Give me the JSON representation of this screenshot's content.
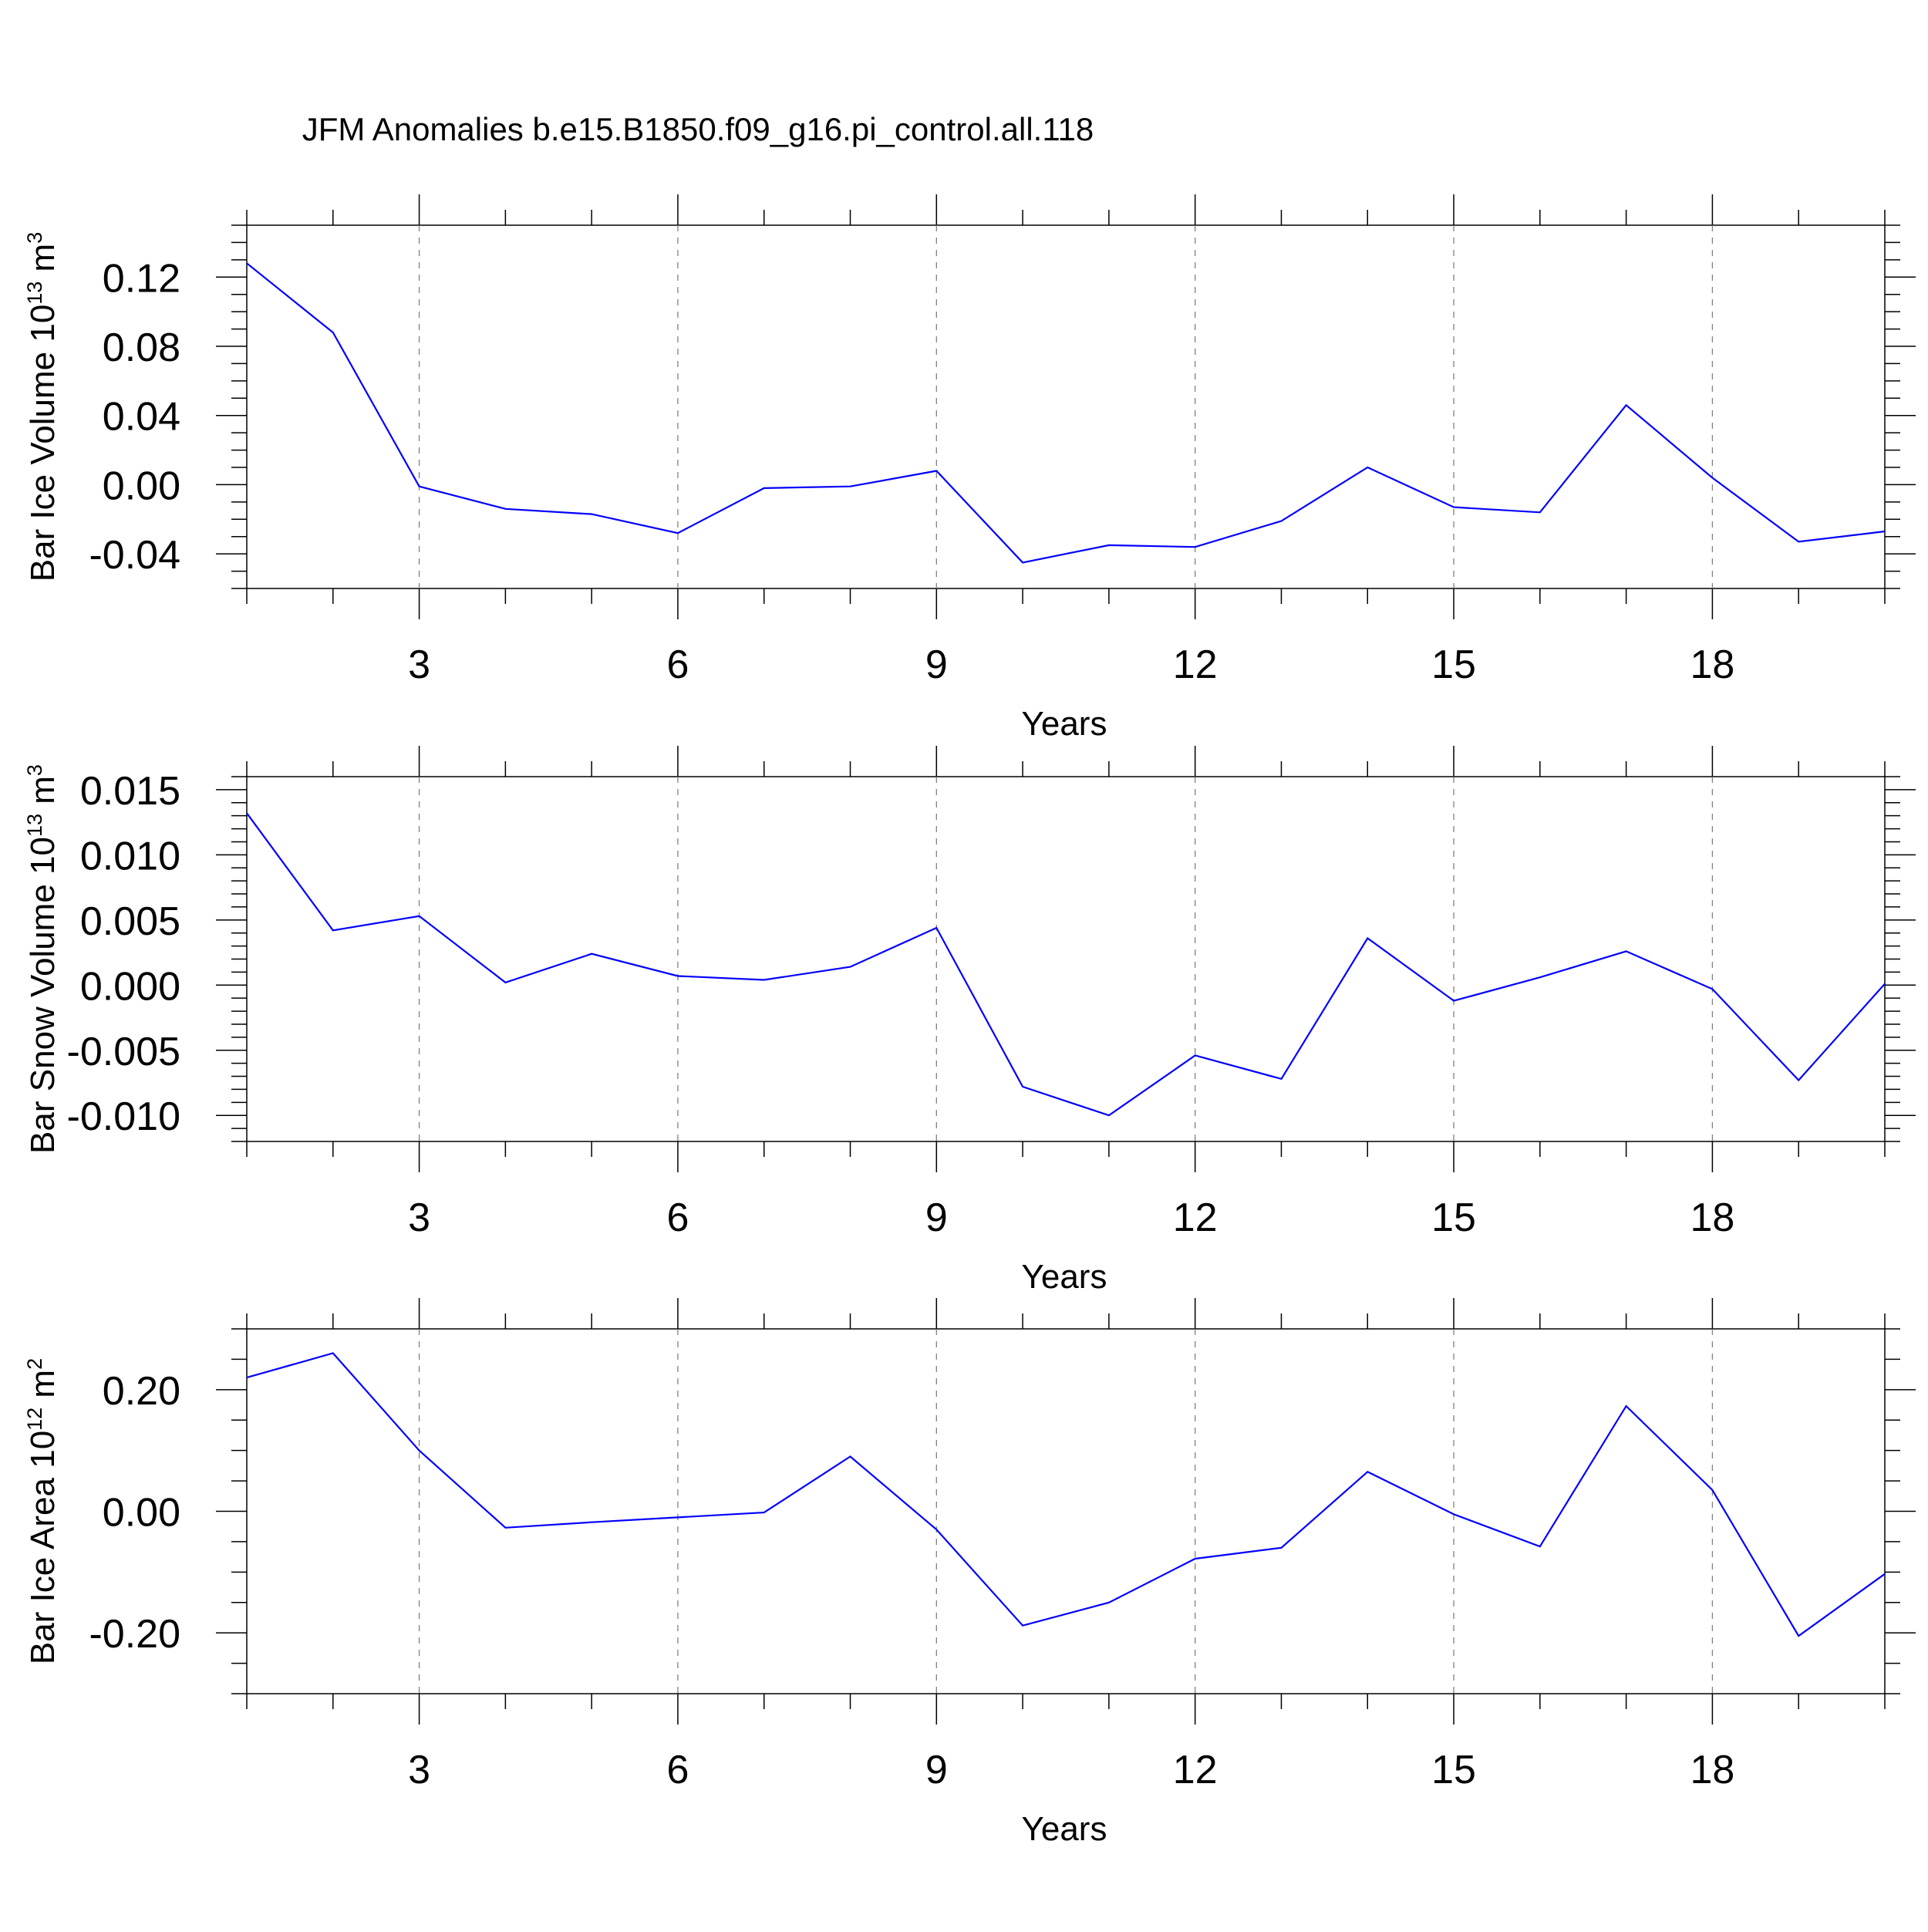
{
  "figure_title": "JFM Anomalies b.e15.B1850.f09_g16.pi_control.all.118",
  "colors": {
    "line": "#0000ff",
    "axis": "#000000",
    "gridline": "#808080",
    "background": "#ffffff"
  },
  "chart_data": [
    {
      "type": "line",
      "title": "JFM Anomalies b.e15.B1850.f09_g16.pi_control.all.118",
      "xlabel": "Years",
      "ylabel": {
        "text": "Bar Ice Volume 10",
        "exponent": "13",
        "unit": " m",
        "unit_exponent": "3"
      },
      "x": [
        1,
        2,
        3,
        4,
        5,
        6,
        7,
        8,
        9,
        10,
        11,
        12,
        13,
        14,
        15,
        16,
        17,
        18,
        19,
        20
      ],
      "series": [
        {
          "name": "Bar Ice Volume",
          "values": [
            0.128,
            0.088,
            -0.001,
            -0.014,
            -0.017,
            -0.028,
            -0.002,
            -0.001,
            0.008,
            -0.045,
            -0.035,
            -0.036,
            -0.021,
            0.01,
            -0.013,
            -0.016,
            0.046,
            0.004,
            -0.033,
            -0.027
          ]
        }
      ],
      "xlim": [
        1,
        20
      ],
      "ylim": [
        -0.06,
        0.15
      ],
      "xticks": [
        3,
        6,
        9,
        12,
        15,
        18
      ],
      "xtick_labels": [
        "3",
        "6",
        "9",
        "12",
        "15",
        "18"
      ],
      "yticks": [
        0.12,
        0.08,
        0.04,
        0.0,
        -0.04
      ],
      "ytick_labels": [
        "0.12",
        "0.08",
        "0.04",
        "0.00",
        "-0.04"
      ],
      "yminor_step": 0.01,
      "grid": "vertical dashed at major x ticks"
    },
    {
      "type": "line",
      "xlabel": "Years",
      "ylabel": {
        "text": "Bar Snow Volume 10",
        "exponent": "13",
        "unit": " m",
        "unit_exponent": "3"
      },
      "x": [
        1,
        2,
        3,
        4,
        5,
        6,
        7,
        8,
        9,
        10,
        11,
        12,
        13,
        14,
        15,
        16,
        17,
        18,
        19,
        20
      ],
      "series": [
        {
          "name": "Bar Snow Volume",
          "values": [
            0.0132,
            0.0042,
            0.0053,
            0.0002,
            0.0024,
            0.0007,
            0.0004,
            0.0014,
            0.0044,
            -0.0078,
            -0.01,
            -0.0054,
            -0.0072,
            0.0036,
            -0.0012,
            0.0006,
            0.0026,
            -0.0003,
            -0.0073,
            0.0001
          ]
        }
      ],
      "xlim": [
        1,
        20
      ],
      "ylim": [
        -0.012,
        0.016
      ],
      "xticks": [
        3,
        6,
        9,
        12,
        15,
        18
      ],
      "xtick_labels": [
        "3",
        "6",
        "9",
        "12",
        "15",
        "18"
      ],
      "yticks": [
        0.015,
        0.01,
        0.005,
        0.0,
        -0.005,
        -0.01
      ],
      "ytick_labels": [
        "0.015",
        "0.010",
        "0.005",
        "0.000",
        "-0.005",
        "-0.010"
      ],
      "yminor_step": 0.001,
      "grid": "vertical dashed at major x ticks"
    },
    {
      "type": "line",
      "xlabel": "Years",
      "ylabel": {
        "text": "Bar Ice Area 10",
        "exponent": "12",
        "unit": " m",
        "unit_exponent": "2"
      },
      "x": [
        1,
        2,
        3,
        4,
        5,
        6,
        7,
        8,
        9,
        10,
        11,
        12,
        13,
        14,
        15,
        16,
        17,
        18,
        19,
        20
      ],
      "series": [
        {
          "name": "Bar Ice Area",
          "values": [
            0.22,
            0.26,
            0.1,
            -0.027,
            -0.018,
            -0.01,
            -0.002,
            0.09,
            -0.03,
            -0.188,
            -0.15,
            -0.078,
            -0.06,
            0.065,
            -0.005,
            -0.058,
            0.173,
            0.035,
            -0.205,
            -0.103
          ]
        }
      ],
      "xlim": [
        1,
        20
      ],
      "ylim": [
        -0.3,
        0.3
      ],
      "xticks": [
        3,
        6,
        9,
        12,
        15,
        18
      ],
      "xtick_labels": [
        "3",
        "6",
        "9",
        "12",
        "15",
        "18"
      ],
      "yticks": [
        0.2,
        0.0,
        -0.2
      ],
      "ytick_labels": [
        "0.20",
        "0.00",
        "-0.20"
      ],
      "yminor_step": 0.05,
      "grid": "vertical dashed at major x ticks"
    }
  ]
}
